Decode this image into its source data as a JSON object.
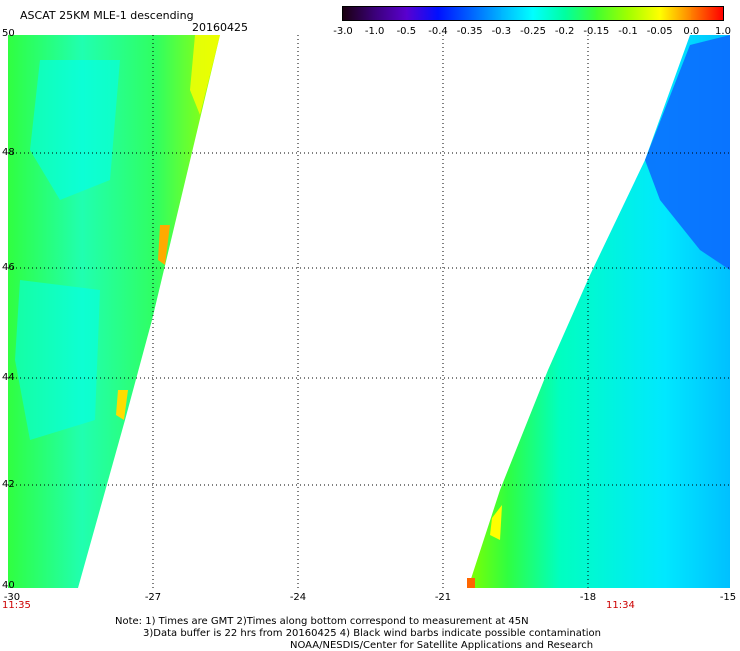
{
  "title": "ASCAT 25KM MLE-1 descending",
  "date": "20160425",
  "colorbar": {
    "labels": [
      "-3.0",
      "-1.0",
      "-0.5",
      "-0.4",
      "-0.35",
      "-0.3",
      "-0.25",
      "-0.2",
      "-0.15",
      "-0.1",
      "-0.05",
      "0.0",
      "1.0"
    ],
    "colors": [
      "#1a0010",
      "#3b007a",
      "#5a00d0",
      "#0010ff",
      "#0060ff",
      "#00b4ff",
      "#00ffff",
      "#00ffa0",
      "#40ff30",
      "#a0ff00",
      "#ffff00",
      "#ff8000",
      "#ff0000"
    ]
  },
  "map": {
    "lon_range": [
      -30,
      -15
    ],
    "lat_range": [
      40,
      50
    ],
    "lat_labels": [
      "50",
      "48",
      "46",
      "44",
      "42",
      "40"
    ],
    "lon_labels": [
      "-30",
      "-27",
      "-24",
      "-21",
      "-18",
      "-15"
    ],
    "grid": "dotted"
  },
  "times": {
    "left": "11:35",
    "right": "11:34"
  },
  "notes": [
    "Note: 1) Times are GMT 2)Times along bottom correspond to measurement at 45N",
    "3)Data buffer is 22 hrs from 20160425 4) Black wind barbs indicate possible contamination",
    "NOAA/NESDIS/Center for Satellite Applications and Research"
  ]
}
